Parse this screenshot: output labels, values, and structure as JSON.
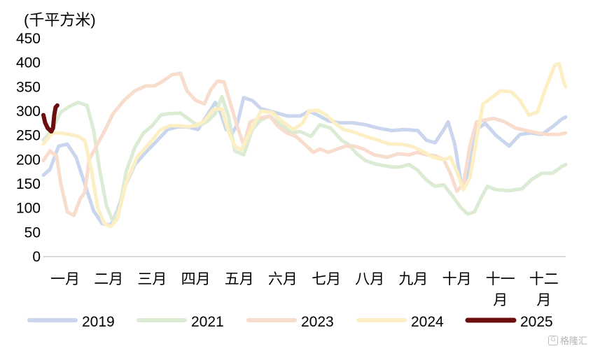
{
  "chart_data": {
    "type": "line",
    "y_unit": "(千平方米)",
    "ylim": [
      0,
      450
    ],
    "y_ticks": [
      "0",
      "50",
      "100",
      "150",
      "200",
      "250",
      "300",
      "350",
      "400",
      "450"
    ],
    "x_range": [
      0,
      12
    ],
    "x_ticks": [
      {
        "pos": 0.5,
        "lines": [
          "一月"
        ]
      },
      {
        "pos": 1.5,
        "lines": [
          "二月"
        ]
      },
      {
        "pos": 2.5,
        "lines": [
          "三月"
        ]
      },
      {
        "pos": 3.5,
        "lines": [
          "四月"
        ]
      },
      {
        "pos": 4.5,
        "lines": [
          "五月"
        ]
      },
      {
        "pos": 5.5,
        "lines": [
          "六月"
        ]
      },
      {
        "pos": 6.5,
        "lines": [
          "七月"
        ]
      },
      {
        "pos": 7.5,
        "lines": [
          "八月"
        ]
      },
      {
        "pos": 8.5,
        "lines": [
          "九月"
        ]
      },
      {
        "pos": 9.5,
        "lines": [
          "十月"
        ]
      },
      {
        "pos": 10.5,
        "lines": [
          "十一",
          "月"
        ]
      },
      {
        "pos": 11.5,
        "lines": [
          "十二",
          "月"
        ]
      }
    ],
    "grid": false,
    "legend_position": "bottom",
    "series": [
      {
        "name": "2019",
        "color": "#c9d6ee",
        "width": 5,
        "points": [
          [
            0.0,
            168
          ],
          [
            0.15,
            180
          ],
          [
            0.35,
            228
          ],
          [
            0.55,
            232
          ],
          [
            0.75,
            205
          ],
          [
            0.95,
            150
          ],
          [
            1.15,
            95
          ],
          [
            1.35,
            68
          ],
          [
            1.55,
            65
          ],
          [
            1.7,
            95
          ],
          [
            1.9,
            150
          ],
          [
            2.1,
            190
          ],
          [
            2.35,
            215
          ],
          [
            2.6,
            238
          ],
          [
            2.85,
            262
          ],
          [
            3.1,
            268
          ],
          [
            3.35,
            267
          ],
          [
            3.55,
            262
          ],
          [
            3.75,
            290
          ],
          [
            3.95,
            318
          ],
          [
            4.05,
            302
          ],
          [
            4.2,
            262
          ],
          [
            4.35,
            256
          ],
          [
            4.45,
            272
          ],
          [
            4.6,
            328
          ],
          [
            4.8,
            322
          ],
          [
            5.0,
            305
          ],
          [
            5.3,
            298
          ],
          [
            5.6,
            290
          ],
          [
            5.9,
            290
          ],
          [
            6.1,
            300
          ],
          [
            6.3,
            292
          ],
          [
            6.55,
            280
          ],
          [
            6.8,
            276
          ],
          [
            7.1,
            276
          ],
          [
            7.4,
            272
          ],
          [
            7.7,
            265
          ],
          [
            8.0,
            260
          ],
          [
            8.3,
            262
          ],
          [
            8.6,
            260
          ],
          [
            8.8,
            240
          ],
          [
            9.0,
            235
          ],
          [
            9.2,
            262
          ],
          [
            9.3,
            278
          ],
          [
            9.45,
            232
          ],
          [
            9.6,
            150
          ],
          [
            9.75,
            162
          ],
          [
            9.95,
            262
          ],
          [
            10.15,
            275
          ],
          [
            10.4,
            250
          ],
          [
            10.7,
            228
          ],
          [
            10.95,
            252
          ],
          [
            11.2,
            255
          ],
          [
            11.45,
            252
          ],
          [
            11.7,
            268
          ],
          [
            11.9,
            283
          ],
          [
            12.0,
            288
          ]
        ]
      },
      {
        "name": "2021",
        "color": "#dcebd4",
        "width": 5,
        "points": [
          [
            0.0,
            240
          ],
          [
            0.2,
            262
          ],
          [
            0.4,
            298
          ],
          [
            0.6,
            310
          ],
          [
            0.8,
            318
          ],
          [
            1.0,
            312
          ],
          [
            1.15,
            262
          ],
          [
            1.3,
            175
          ],
          [
            1.45,
            105
          ],
          [
            1.6,
            72
          ],
          [
            1.75,
            100
          ],
          [
            1.9,
            175
          ],
          [
            2.1,
            225
          ],
          [
            2.3,
            255
          ],
          [
            2.5,
            270
          ],
          [
            2.7,
            292
          ],
          [
            2.9,
            295
          ],
          [
            3.15,
            296
          ],
          [
            3.35,
            283
          ],
          [
            3.55,
            270
          ],
          [
            3.75,
            278
          ],
          [
            3.95,
            295
          ],
          [
            4.1,
            330
          ],
          [
            4.25,
            290
          ],
          [
            4.4,
            218
          ],
          [
            4.6,
            210
          ],
          [
            4.8,
            262
          ],
          [
            5.0,
            282
          ],
          [
            5.2,
            290
          ],
          [
            5.5,
            270
          ],
          [
            5.7,
            255
          ],
          [
            5.9,
            258
          ],
          [
            6.15,
            248
          ],
          [
            6.35,
            272
          ],
          [
            6.6,
            265
          ],
          [
            6.85,
            240
          ],
          [
            7.0,
            232
          ],
          [
            7.2,
            212
          ],
          [
            7.4,
            198
          ],
          [
            7.6,
            192
          ],
          [
            7.8,
            188
          ],
          [
            8.0,
            185
          ],
          [
            8.2,
            185
          ],
          [
            8.4,
            190
          ],
          [
            8.6,
            178
          ],
          [
            8.8,
            158
          ],
          [
            9.0,
            145
          ],
          [
            9.2,
            148
          ],
          [
            9.4,
            125
          ],
          [
            9.6,
            100
          ],
          [
            9.75,
            88
          ],
          [
            9.9,
            92
          ],
          [
            10.05,
            120
          ],
          [
            10.2,
            145
          ],
          [
            10.4,
            138
          ],
          [
            10.7,
            136
          ],
          [
            11.0,
            140
          ],
          [
            11.2,
            158
          ],
          [
            11.45,
            172
          ],
          [
            11.7,
            172
          ],
          [
            11.9,
            185
          ],
          [
            12.0,
            190
          ]
        ]
      },
      {
        "name": "2023",
        "color": "#f8dccd",
        "width": 5,
        "points": [
          [
            0.0,
            198
          ],
          [
            0.15,
            218
          ],
          [
            0.3,
            208
          ],
          [
            0.4,
            150
          ],
          [
            0.55,
            92
          ],
          [
            0.7,
            85
          ],
          [
            0.85,
            120
          ],
          [
            0.95,
            132
          ],
          [
            1.05,
            200
          ],
          [
            1.2,
            225
          ],
          [
            1.4,
            258
          ],
          [
            1.6,
            295
          ],
          [
            1.85,
            322
          ],
          [
            2.1,
            342
          ],
          [
            2.35,
            352
          ],
          [
            2.55,
            352
          ],
          [
            2.75,
            362
          ],
          [
            2.95,
            375
          ],
          [
            3.15,
            378
          ],
          [
            3.3,
            342
          ],
          [
            3.5,
            322
          ],
          [
            3.7,
            315
          ],
          [
            3.85,
            345
          ],
          [
            4.0,
            362
          ],
          [
            4.15,
            360
          ],
          [
            4.3,
            315
          ],
          [
            4.45,
            270
          ],
          [
            4.6,
            230
          ],
          [
            4.75,
            278
          ],
          [
            4.95,
            285
          ],
          [
            5.2,
            290
          ],
          [
            5.4,
            268
          ],
          [
            5.6,
            255
          ],
          [
            5.8,
            248
          ],
          [
            6.0,
            232
          ],
          [
            6.2,
            215
          ],
          [
            6.35,
            222
          ],
          [
            6.55,
            215
          ],
          [
            6.75,
            222
          ],
          [
            6.95,
            228
          ],
          [
            7.15,
            228
          ],
          [
            7.35,
            222
          ],
          [
            7.6,
            210
          ],
          [
            7.9,
            205
          ],
          [
            8.15,
            212
          ],
          [
            8.4,
            210
          ],
          [
            8.6,
            215
          ],
          [
            8.8,
            210
          ],
          [
            9.0,
            208
          ],
          [
            9.2,
            200
          ],
          [
            9.35,
            172
          ],
          [
            9.5,
            135
          ],
          [
            9.65,
            150
          ],
          [
            9.8,
            228
          ],
          [
            9.95,
            278
          ],
          [
            10.15,
            282
          ],
          [
            10.35,
            285
          ],
          [
            10.6,
            278
          ],
          [
            10.85,
            265
          ],
          [
            11.1,
            260
          ],
          [
            11.35,
            255
          ],
          [
            11.6,
            252
          ],
          [
            11.85,
            252
          ],
          [
            12.0,
            255
          ]
        ]
      },
      {
        "name": "2024",
        "color": "#fdefc4",
        "width": 5,
        "points": [
          [
            0.0,
            232
          ],
          [
            0.2,
            255
          ],
          [
            0.4,
            255
          ],
          [
            0.6,
            252
          ],
          [
            0.8,
            248
          ],
          [
            0.95,
            240
          ],
          [
            1.1,
            180
          ],
          [
            1.25,
            100
          ],
          [
            1.4,
            68
          ],
          [
            1.55,
            62
          ],
          [
            1.7,
            78
          ],
          [
            1.9,
            152
          ],
          [
            2.15,
            205
          ],
          [
            2.4,
            230
          ],
          [
            2.7,
            262
          ],
          [
            2.9,
            270
          ],
          [
            3.1,
            270
          ],
          [
            3.3,
            268
          ],
          [
            3.5,
            270
          ],
          [
            3.7,
            280
          ],
          [
            3.9,
            303
          ],
          [
            4.1,
            305
          ],
          [
            4.25,
            258
          ],
          [
            4.4,
            228
          ],
          [
            4.55,
            220
          ],
          [
            4.75,
            258
          ],
          [
            5.0,
            300
          ],
          [
            5.25,
            298
          ],
          [
            5.5,
            278
          ],
          [
            5.75,
            262
          ],
          [
            5.95,
            275
          ],
          [
            6.1,
            300
          ],
          [
            6.3,
            302
          ],
          [
            6.5,
            292
          ],
          [
            6.7,
            275
          ],
          [
            6.9,
            262
          ],
          [
            7.1,
            258
          ],
          [
            7.4,
            248
          ],
          [
            7.7,
            240
          ],
          [
            7.95,
            232
          ],
          [
            8.2,
            232
          ],
          [
            8.45,
            228
          ],
          [
            8.7,
            218
          ],
          [
            8.95,
            205
          ],
          [
            9.2,
            200
          ],
          [
            9.35,
            205
          ],
          [
            9.5,
            175
          ],
          [
            9.65,
            138
          ],
          [
            9.8,
            162
          ],
          [
            9.95,
            242
          ],
          [
            10.1,
            315
          ],
          [
            10.3,
            328
          ],
          [
            10.5,
            342
          ],
          [
            10.75,
            340
          ],
          [
            10.95,
            322
          ],
          [
            11.15,
            292
          ],
          [
            11.35,
            298
          ],
          [
            11.55,
            350
          ],
          [
            11.75,
            395
          ],
          [
            11.85,
            398
          ],
          [
            11.95,
            362
          ],
          [
            12.0,
            350
          ]
        ]
      },
      {
        "name": "2025",
        "color": "#6b0e0e",
        "width": 6,
        "points": [
          [
            0.0,
            292
          ],
          [
            0.04,
            276
          ],
          [
            0.1,
            265
          ],
          [
            0.18,
            258
          ],
          [
            0.22,
            265
          ],
          [
            0.25,
            292
          ],
          [
            0.28,
            308
          ],
          [
            0.32,
            312
          ]
        ]
      }
    ]
  },
  "watermark": {
    "icon": "G",
    "text": "格隆汇"
  }
}
